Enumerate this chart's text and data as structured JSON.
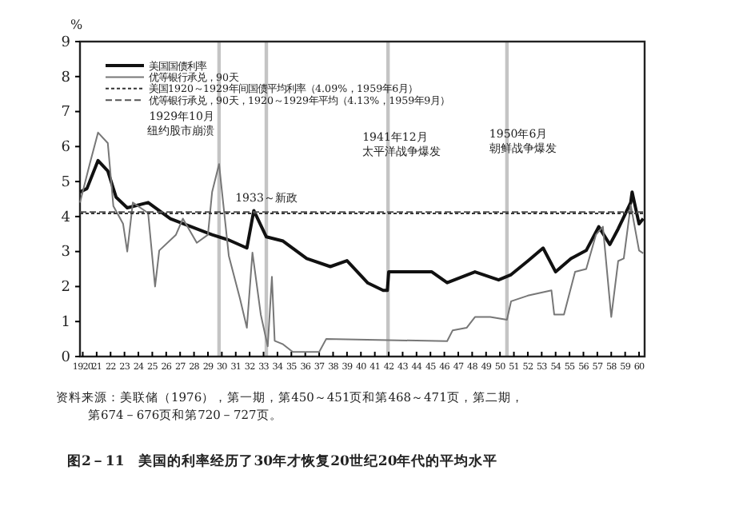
{
  "chart_data": {
    "type": "line",
    "title": "图2－11　美国的利率经历了30年才恢复20世纪20年代的平均水平",
    "ylabel": "%",
    "xlim": [
      1919.8,
      1960.4
    ],
    "ylim": [
      0,
      9
    ],
    "yticks": [
      0,
      1,
      2,
      3,
      4,
      5,
      6,
      7,
      8,
      9
    ],
    "xticks": [
      {
        "value": 1920,
        "label": "1920"
      },
      {
        "value": 1921,
        "label": "21"
      },
      {
        "value": 1922,
        "label": "22"
      },
      {
        "value": 1923,
        "label": "23"
      },
      {
        "value": 1924,
        "label": "24"
      },
      {
        "value": 1925,
        "label": "25"
      },
      {
        "value": 1926,
        "label": "26"
      },
      {
        "value": 1927,
        "label": "27"
      },
      {
        "value": 1928,
        "label": "28"
      },
      {
        "value": 1929,
        "label": "29"
      },
      {
        "value": 1930,
        "label": "30"
      },
      {
        "value": 1931,
        "label": "31"
      },
      {
        "value": 1932,
        "label": "32"
      },
      {
        "value": 1933,
        "label": "33"
      },
      {
        "value": 1934,
        "label": "34"
      },
      {
        "value": 1935,
        "label": "35"
      },
      {
        "value": 1936,
        "label": "36"
      },
      {
        "value": 1937,
        "label": "37"
      },
      {
        "value": 1938,
        "label": "38"
      },
      {
        "value": 1939,
        "label": "39"
      },
      {
        "value": 1940,
        "label": "40"
      },
      {
        "value": 1941,
        "label": "41"
      },
      {
        "value": 1942,
        "label": "42"
      },
      {
        "value": 1943,
        "label": "43"
      },
      {
        "value": 1944,
        "label": "44"
      },
      {
        "value": 1945,
        "label": "45"
      },
      {
        "value": 1946,
        "label": "46"
      },
      {
        "value": 1947,
        "label": "47"
      },
      {
        "value": 1948,
        "label": "48"
      },
      {
        "value": 1949,
        "label": "49"
      },
      {
        "value": 1950,
        "label": "50"
      },
      {
        "value": 1951,
        "label": "51"
      },
      {
        "value": 1952,
        "label": "52"
      },
      {
        "value": 1953,
        "label": "53"
      },
      {
        "value": 1954,
        "label": "54"
      },
      {
        "value": 1955,
        "label": "55"
      },
      {
        "value": 1956,
        "label": "56"
      },
      {
        "value": 1957,
        "label": "57"
      },
      {
        "value": 1958,
        "label": "58"
      },
      {
        "value": 1959,
        "label": "59"
      },
      {
        "value": 1960,
        "label": "60"
      }
    ],
    "legend": "top left",
    "grid": false,
    "series": [
      {
        "name": "美国国债利率",
        "color": "#111111",
        "line_style": "solid",
        "x": [
          1919.8,
          1920.3,
          1921.1,
          1921.8,
          1922.4,
          1923.2,
          1924.7,
          1926.3,
          1927.8,
          1929.3,
          1930.5,
          1931.8,
          1932.3,
          1933.2,
          1934.4,
          1936.1,
          1937.8,
          1939.0,
          1940.5,
          1941.6,
          1941.9,
          1942.0,
          1945.1,
          1946.2,
          1948.2,
          1949.9,
          1950.8,
          1952.0,
          1953.1,
          1954.0,
          1955.1,
          1956.2,
          1957.1,
          1957.9,
          1958.5,
          1959.4,
          1959.5,
          1960.0,
          1960.3
        ],
        "values": [
          4.7,
          4.8,
          5.6,
          5.3,
          4.55,
          4.25,
          4.4,
          3.94,
          3.71,
          3.48,
          3.33,
          3.1,
          4.17,
          3.42,
          3.3,
          2.8,
          2.57,
          2.74,
          2.1,
          1.89,
          1.89,
          2.42,
          2.42,
          2.11,
          2.42,
          2.19,
          2.34,
          2.73,
          3.1,
          2.42,
          2.8,
          3.03,
          3.71,
          3.2,
          3.65,
          4.4,
          4.7,
          3.79,
          3.94
        ]
      },
      {
        "name": "优等银行承兑，90天",
        "color": "#777777",
        "line_style": "solid",
        "x": [
          1919.8,
          1920.5,
          1921.1,
          1921.8,
          1922.2,
          1922.9,
          1923.2,
          1923.6,
          1924.7,
          1925.2,
          1925.5,
          1926.7,
          1927.2,
          1928.2,
          1929.0,
          1929.3,
          1929.8,
          1930.5,
          1931.3,
          1931.8,
          1932.2,
          1932.8,
          1933.3,
          1933.6,
          1933.8,
          1934.4,
          1935.1,
          1937.0,
          1937.5,
          1946.2,
          1946.6,
          1947.6,
          1948.2,
          1949.3,
          1950.5,
          1950.8,
          1952.0,
          1953.7,
          1953.9,
          1954.6,
          1955.4,
          1956.2,
          1956.9,
          1957.4,
          1958.0,
          1958.5,
          1958.9,
          1959.4,
          1960.0,
          1960.3
        ],
        "values": [
          4.4,
          5.5,
          6.4,
          6.1,
          4.3,
          3.79,
          3.0,
          4.4,
          4.1,
          2.0,
          3.03,
          3.48,
          3.94,
          3.25,
          3.48,
          4.7,
          5.5,
          2.88,
          1.66,
          0.82,
          2.97,
          1.2,
          0.29,
          2.28,
          0.45,
          0.35,
          0.13,
          0.13,
          0.5,
          0.44,
          0.75,
          0.82,
          1.13,
          1.13,
          1.05,
          1.58,
          1.74,
          1.89,
          1.2,
          1.2,
          2.42,
          2.5,
          3.48,
          3.71,
          1.13,
          2.73,
          2.8,
          4.33,
          3.03,
          2.95
        ]
      },
      {
        "name": "美国1920～1929年间国债平均利率（4.09%，1959年6月）",
        "color": "#333333",
        "line_style": "dotted",
        "x": [
          1919.8,
          1960.4
        ],
        "values": [
          4.09,
          4.09
        ]
      },
      {
        "name": "优等银行承兑，90天，1920～1929年平均（4.13%，1959年9月）",
        "color": "#555555",
        "line_style": "dashed",
        "x": [
          1919.8,
          1960.4
        ],
        "values": [
          4.13,
          4.13
        ]
      }
    ],
    "ref_lines": [
      {
        "axis": "x",
        "value": 1929.8,
        "label": "1929年10月纽约股市崩溃",
        "color": "#c4c4c4"
      },
      {
        "axis": "x",
        "value": 1933.2,
        "label": "1933～新政",
        "color": "#c4c4c4"
      },
      {
        "axis": "x",
        "value": 1941.95,
        "label": "1941年12月太平洋战争爆发",
        "color": "#c4c4c4"
      },
      {
        "axis": "x",
        "value": 1950.5,
        "label": "1950年6月朝鲜战争爆发",
        "color": "#c4c4c4"
      }
    ],
    "annotations": [
      "资料来源：美联储（1976），第一期，第450～451页和第468～471页，第二期，第674－676页和第720－727页。"
    ]
  }
}
